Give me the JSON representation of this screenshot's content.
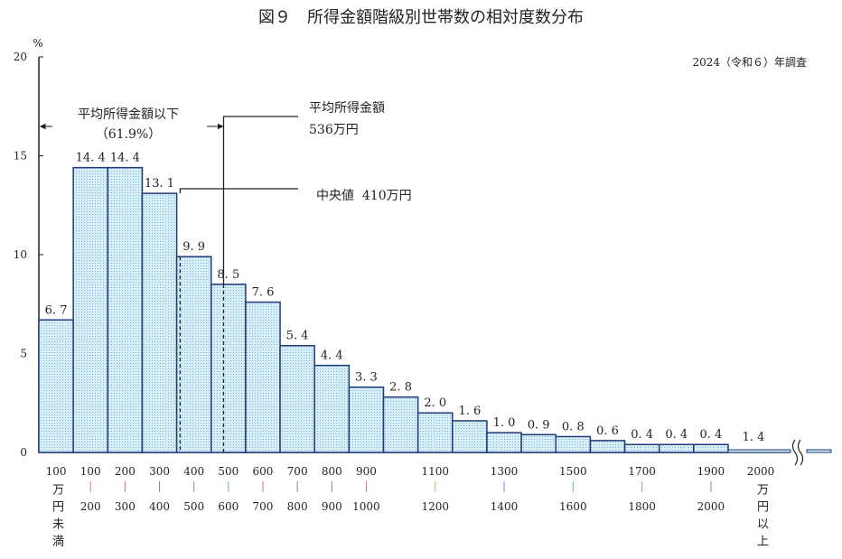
{
  "chart_data": {
    "type": "bar",
    "title": "図９　所得金額階級別世帯数の相対度数分布",
    "subtitle": "2024（令和６）年調査",
    "ylabel": "%",
    "ylim": [
      0,
      20
    ],
    "yticks": [
      0,
      5,
      10,
      15,
      20
    ],
    "grid": false,
    "categories": [
      {
        "top": "100",
        "bottom": "万円未満",
        "label": "100万円未満"
      },
      {
        "top": "100",
        "bottom": "200",
        "sep_color": "#e07070"
      },
      {
        "top": "200",
        "bottom": "300",
        "sep_color": "#e07070"
      },
      {
        "top": "300",
        "bottom": "400",
        "sep_color": "#8080c0"
      },
      {
        "top": "400",
        "bottom": "500",
        "sep_color": "#7090e0"
      },
      {
        "top": "500",
        "bottom": "600",
        "sep_color": "#60b0e0"
      },
      {
        "top": "600",
        "bottom": "700",
        "sep_color": "#e07070"
      },
      {
        "top": "700",
        "bottom": "800",
        "sep_color": "#8080a0"
      },
      {
        "top": "800",
        "bottom": "900",
        "sep_color": "#808080"
      },
      {
        "top": "900",
        "bottom": "1000",
        "sep_color": "#e07070"
      },
      {
        "top": "1100",
        "bottom": "1200",
        "sep_color": "#e0b060"
      },
      {
        "top": "1300",
        "bottom": "1400",
        "sep_color": "#7090e0"
      },
      {
        "top": "1500",
        "bottom": "1600",
        "sep_color": "#60b0e0"
      },
      {
        "top": "1700",
        "bottom": "1800",
        "sep_color": "#c09070"
      },
      {
        "top": "1900",
        "bottom": "2000",
        "sep_color": "#8080c0"
      },
      {
        "top": "2000",
        "bottom": "万円以上",
        "label": "2000万円以上"
      }
    ],
    "bars": [
      {
        "range": "100万円未満",
        "value": 6.7,
        "label": "6.7"
      },
      {
        "range": "100-200",
        "value": 14.4,
        "label": "14.4"
      },
      {
        "range": "200-300",
        "value": 14.4,
        "label": "14.4"
      },
      {
        "range": "300-400",
        "value": 13.1,
        "label": "13.1"
      },
      {
        "range": "400-500",
        "value": 9.9,
        "label": "9.9"
      },
      {
        "range": "500-600",
        "value": 8.5,
        "label": "8.5"
      },
      {
        "range": "600-700",
        "value": 7.6,
        "label": "7.6"
      },
      {
        "range": "700-800",
        "value": 5.4,
        "label": "5.4"
      },
      {
        "range": "800-900",
        "value": 4.4,
        "label": "4.4"
      },
      {
        "range": "900-1000",
        "value": 3.3,
        "label": "3.3"
      },
      {
        "range": "1000-1100",
        "value": 2.8,
        "label": "2.8"
      },
      {
        "range": "1100-1200",
        "value": 2.0,
        "label": "2.0"
      },
      {
        "range": "1200-1300",
        "value": 1.6,
        "label": "1.6"
      },
      {
        "range": "1300-1400",
        "value": 1.0,
        "label": "1.0"
      },
      {
        "range": "1400-1500",
        "value": 0.9,
        "label": "0.9"
      },
      {
        "range": "1500-1600",
        "value": 0.8,
        "label": "0.8"
      },
      {
        "range": "1600-1700",
        "value": 0.6,
        "label": "0.6"
      },
      {
        "range": "1700-1800",
        "value": 0.4,
        "label": "0.4"
      },
      {
        "range": "1800-1900",
        "value": 0.4,
        "label": "0.4"
      },
      {
        "range": "1900-2000",
        "value": 0.4,
        "label": "0.4"
      },
      {
        "range": "2000万円以上",
        "value": 1.4,
        "label": "1.4"
      }
    ],
    "annotations": {
      "below_mean": {
        "line1": "平均所得金額以下",
        "line2": "（61.9%）"
      },
      "mean": {
        "line1": "平均所得金額",
        "line2": "536万円",
        "value": 536
      },
      "median": {
        "text": "中央値  410万円",
        "value": 410
      }
    },
    "colors": {
      "bar_fill": "#cfe8f5",
      "bar_dot": "#6fb3d9",
      "bar_edge": "#1f3a7a"
    }
  }
}
